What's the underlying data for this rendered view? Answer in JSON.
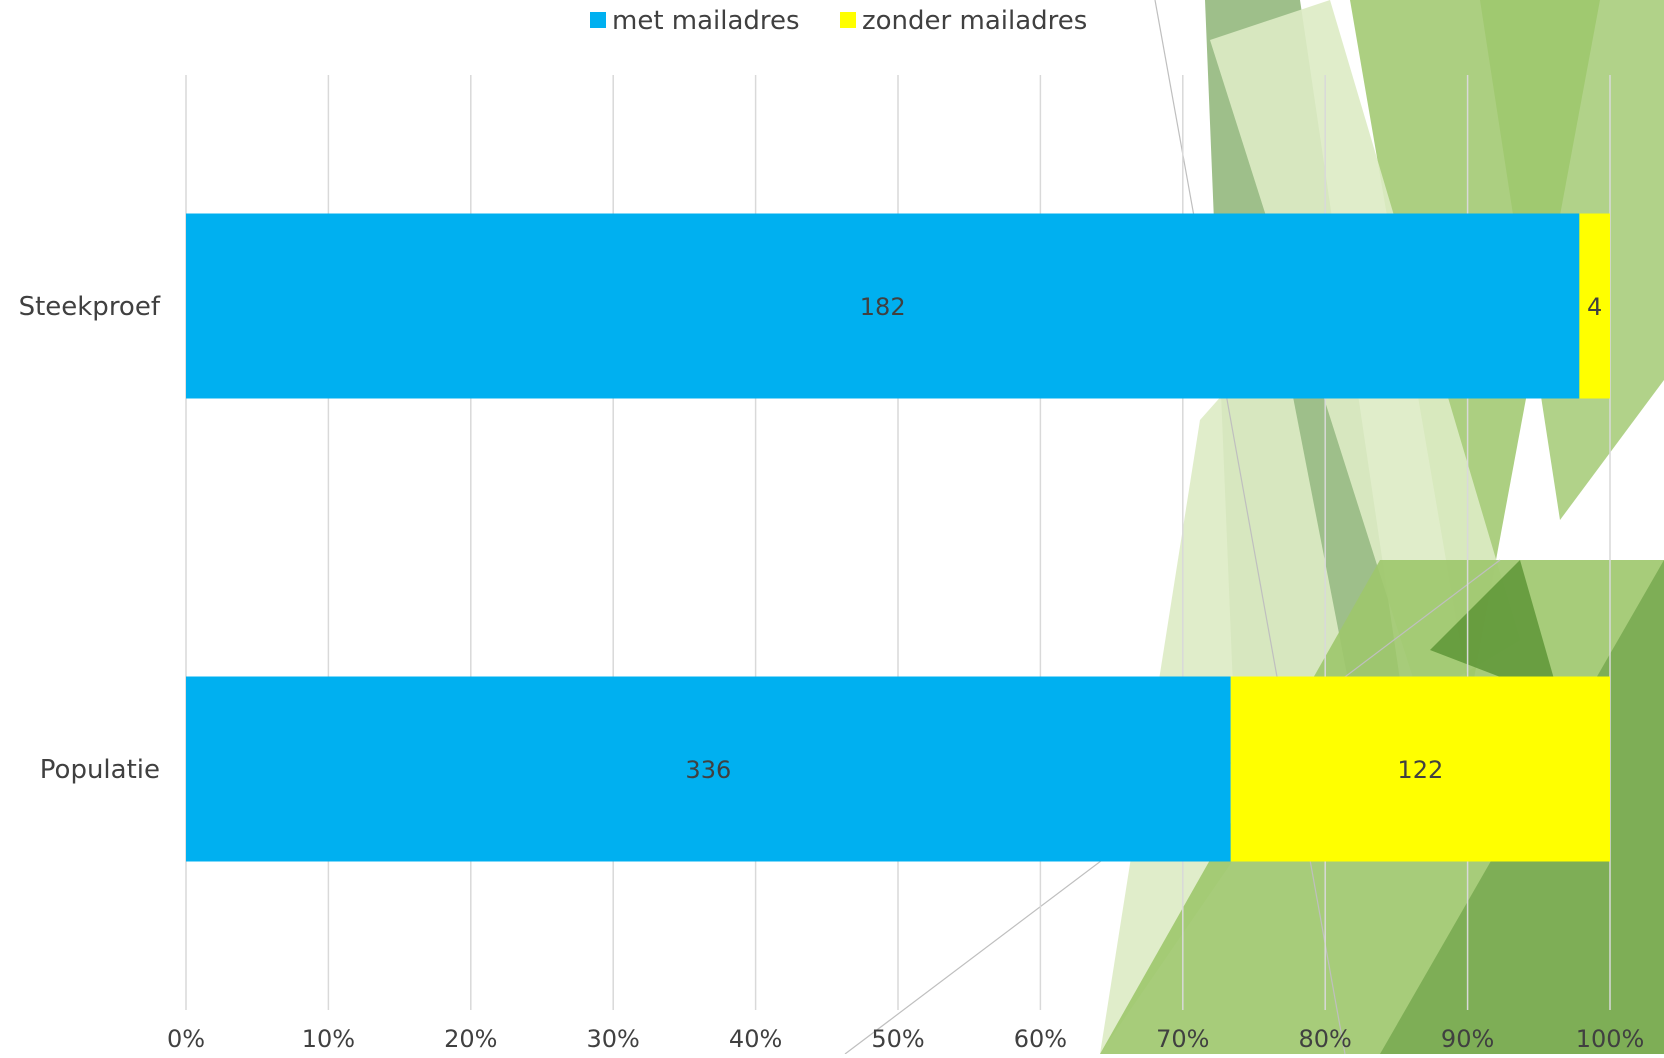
{
  "chart_data": {
    "type": "bar",
    "orientation": "horizontal",
    "stacked": "percent",
    "categories": [
      "Steekproef",
      "Populatie"
    ],
    "series": [
      {
        "name": "met mailadres",
        "values": [
          182,
          336
        ]
      },
      {
        "name": "zonder mailadres",
        "values": [
          4,
          122
        ]
      }
    ],
    "xlim": [
      0,
      100
    ],
    "x_ticks": [
      "0%",
      "10%",
      "20%",
      "30%",
      "40%",
      "50%",
      "60%",
      "70%",
      "80%",
      "90%",
      "100%"
    ],
    "grid": "vertical",
    "legend_position": "top-center",
    "colors": {
      "met_mailadres": "#00B0F0",
      "zonder_mailadres": "#FFFF00",
      "gridline": "#D9D9D9",
      "text": "#404040",
      "decor_light": "#DDEBC4",
      "decor_mid": "#9DC76B",
      "decor_dark": "#4E8A2A"
    }
  }
}
